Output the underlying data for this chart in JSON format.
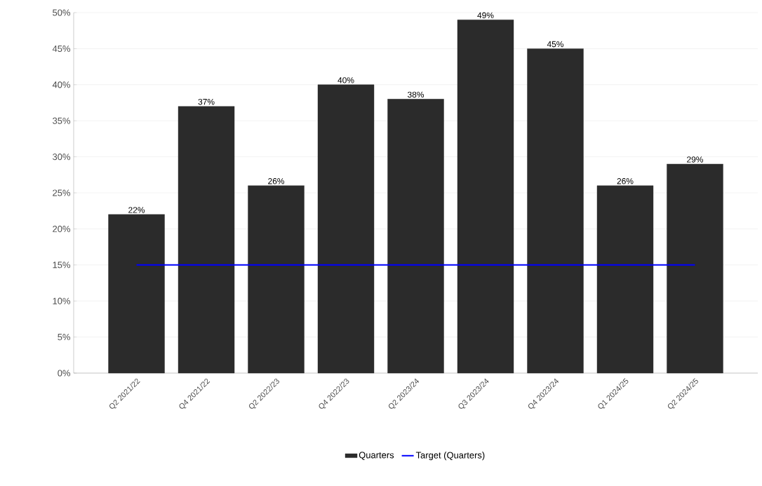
{
  "chart_data": {
    "type": "bar",
    "categories": [
      "Q2 2021/22",
      "Q4 2021/22",
      "Q2 2022/23",
      "Q4 2022/23",
      "Q2 2023/24",
      "Q3 2023/24",
      "Q4 2023/24",
      "Q1 2024/25",
      "Q2 2024/25"
    ],
    "series": [
      {
        "name": "Quarters",
        "color": "#2b2b2b",
        "values": [
          22,
          37,
          26,
          40,
          38,
          49,
          45,
          26,
          29
        ],
        "value_labels": [
          "22%",
          "37%",
          "26%",
          "40%",
          "38%",
          "49%",
          "45%",
          "26%",
          "29%"
        ]
      },
      {
        "name": "Target (Quarters)",
        "type": "line",
        "color": "#0000ff",
        "marker": "none",
        "values": [
          15,
          15,
          15,
          15,
          15,
          15,
          15,
          15,
          15
        ]
      }
    ],
    "ylim": [
      0,
      50
    ],
    "yticks": [
      {
        "value": 0,
        "label": "0%"
      },
      {
        "value": 5,
        "label": "5%"
      },
      {
        "value": 10,
        "label": "10%"
      },
      {
        "value": 15,
        "label": "15%"
      },
      {
        "value": 20,
        "label": "20%"
      },
      {
        "value": 25,
        "label": "25%"
      },
      {
        "value": 30,
        "label": "30%"
      },
      {
        "value": 35,
        "label": "35%"
      },
      {
        "value": 40,
        "label": "40%"
      },
      {
        "value": 45,
        "label": "45%"
      },
      {
        "value": 50,
        "label": "50%"
      }
    ],
    "grid": "y",
    "legend": "bottom"
  }
}
